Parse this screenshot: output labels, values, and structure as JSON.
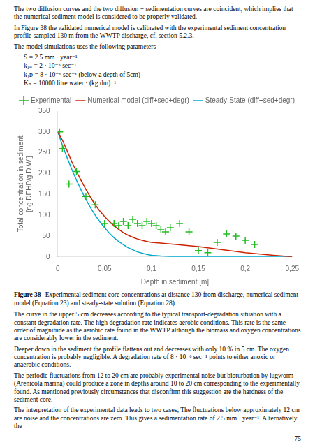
{
  "text_before": [
    "The two diffusion curves and the two diffusion + sedimentation curves are coincident, which implies that the numerical sediment model is considered to be properly validated.",
    "In Figure 38 the validated numerical model is calibrated with the experimental sediment concentration profile sampled 130 m from the WWTP discharge, cf. section 5.2.3.",
    "The model simulations uses the following parameters"
  ],
  "parameters": [
    "S = 2.5 mm · year⁻¹",
    "k₁ₙ = 2 · 10⁻⁵ sec⁻¹",
    "k₁ᴅ = 8 · 10⁻⁶ sec⁻¹ (below a depth of 5cm)",
    "Kₙ = 10000 litre water · (kg dm)⁻¹"
  ],
  "chart_data": {
    "type": "line",
    "xlabel": "Depth in sediment [m]",
    "ylabel": "Total concentration in sediment\n[ng DEHP/g D.W.]",
    "xlim": [
      0,
      0.25
    ],
    "ylim": [
      0,
      350
    ],
    "xticks": [
      0,
      {
        "value": 0.05,
        "label": "0,05"
      },
      {
        "value": 0.1,
        "label": "0,1"
      },
      {
        "value": 0.15,
        "label": "0,15"
      },
      {
        "value": 0.2,
        "label": "0,2"
      },
      {
        "value": 0.25,
        "label": "0,25"
      }
    ],
    "yticks": [
      0,
      50,
      100,
      150,
      200,
      250,
      300,
      350
    ],
    "grid": false,
    "legend": "top",
    "series": [
      {
        "name": "Experimental",
        "type": "scatter",
        "marker": "plus",
        "color": "#22bb22",
        "x": [
          0.002,
          0.005,
          0.012,
          0.02,
          0.03,
          0.04,
          0.05,
          0.06,
          0.065,
          0.07,
          0.075,
          0.08,
          0.085,
          0.09,
          0.095,
          0.1,
          0.105,
          0.11,
          0.115,
          0.12,
          0.13,
          0.14,
          0.15,
          0.16,
          0.17,
          0.18,
          0.19,
          0.2,
          0.21
        ],
        "values": [
          300,
          260,
          175,
          205,
          145,
          125,
          80,
          80,
          75,
          85,
          75,
          90,
          80,
          75,
          85,
          80,
          75,
          65,
          60,
          70,
          80,
          60,
          15,
          10,
          35,
          55,
          50,
          40,
          30
        ]
      },
      {
        "name": "Numerical model\n(diff+sed+degr)",
        "type": "line",
        "color": "#cc2200",
        "x": [
          0,
          0.005,
          0.01,
          0.015,
          0.02,
          0.025,
          0.03,
          0.035,
          0.04,
          0.045,
          0.05,
          0.055,
          0.06,
          0.065,
          0.07,
          0.075,
          0.08,
          0.085,
          0.09,
          0.095,
          0.1,
          0.105,
          0.11,
          0.115,
          0.12,
          0.13,
          0.14,
          0.15,
          0.16,
          0.17,
          0.18,
          0.19,
          0.2,
          0.21,
          0.22,
          0.23,
          0.24,
          0.25
        ],
        "values": [
          300,
          280,
          255,
          228,
          205,
          183,
          162,
          143,
          125,
          110,
          97,
          85,
          75,
          66,
          58,
          52,
          47,
          43,
          40,
          37,
          35,
          34,
          33,
          32,
          31,
          29,
          27,
          25,
          22,
          19,
          16,
          13,
          10,
          8,
          6,
          4,
          2,
          0
        ]
      },
      {
        "name": "Steady-State\n(diff+sed+degr)",
        "type": "line",
        "color": "#00aacc",
        "x": [
          0,
          0.005,
          0.01,
          0.015,
          0.02,
          0.025,
          0.03,
          0.035,
          0.04,
          0.045,
          0.05,
          0.055,
          0.06,
          0.065,
          0.07,
          0.075,
          0.08,
          0.085,
          0.09,
          0.095,
          0.1,
          0.105,
          0.11,
          0.12,
          0.13,
          0.14,
          0.15,
          0.16,
          0.17,
          0.18,
          0.19,
          0.2,
          0.25
        ],
        "values": [
          300,
          268,
          238,
          210,
          184,
          160,
          138,
          118,
          100,
          84,
          70,
          57,
          46,
          37,
          29,
          22,
          17,
          12,
          9,
          6,
          4,
          3,
          2,
          1,
          0.5,
          0.2,
          0.1,
          0.05,
          0.02,
          0.01,
          0.005,
          0.002,
          0
        ]
      }
    ]
  },
  "caption_label": "Figure 38",
  "caption": "Experimental sediment core concentrations at distance 130 from discharge, numerical sediment model (Equation 23) and steady-state solution (Equation 28).",
  "text_after": [
    "The curve in the upper 5 cm decreases according to the typical transport-degradation situation with a constant degradation rate. The high degradation rate indicates aerobic conditions. This rate is the same order of magnitude as the aerobic rate found in the WWTP although the biomass and oxygen concentrations are considerably lower in the sediment.",
    "Deeper down in the sediment the profile flattens out and decreases with only 10 % in 5 cm. The oxygen concentration is probably negligible. A degradation rate of 8 · 10⁻⁶ sec⁻¹ points to either anoxic or anaerobic conditions.",
    "The periodic fluctuations from 12 to 20 cm are probably experimental noise but bioturbation by lugworm (Arenicola marina) could produce a zone in depths around 10 to 20 cm corresponding to the experimentally found. As mentioned previously circumstances that disconfirm this suggestion are the hardness of the sediment core.",
    "The interpretation of the experimental data leads to two cases; The fluctuations below approximately 12 cm are noise and the concentrations are zero. This gives a sedimentation rate of 2.5 mm · year⁻¹. Alternatively the"
  ],
  "page_number": "75"
}
